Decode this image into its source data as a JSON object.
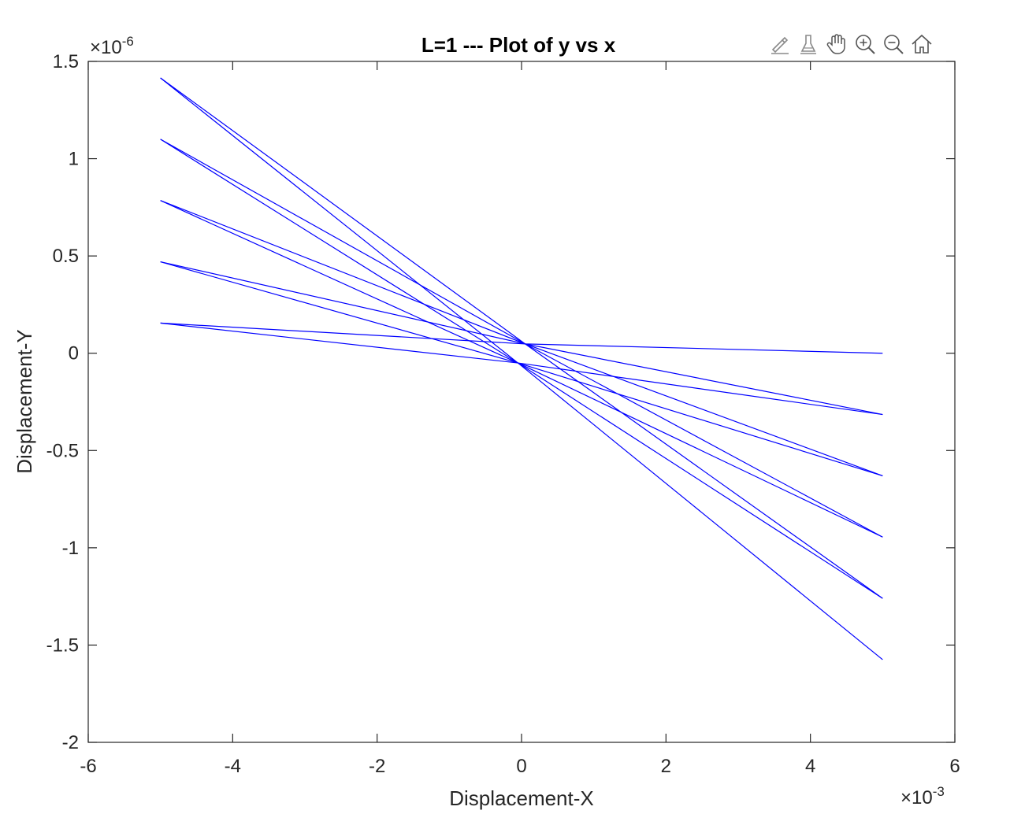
{
  "chart_data": {
    "type": "line",
    "title": "L=1 --- Plot of y vs x",
    "xlabel": "Displacement-X",
    "ylabel": "Displacement-Y",
    "x_multiplier": "×10",
    "x_exponent": "-3",
    "y_multiplier": "×10",
    "y_exponent": "-6",
    "xlim": [
      -6,
      6
    ],
    "ylim": [
      -2,
      1.5
    ],
    "xticks": [
      -6,
      -4,
      -2,
      0,
      2,
      4,
      6
    ],
    "yticks": [
      -2,
      -1.5,
      -1,
      -0.5,
      0,
      0.5,
      1,
      1.5
    ],
    "xtick_labels": [
      "-6",
      "-4",
      "-2",
      "0",
      "2",
      "4",
      "6"
    ],
    "ytick_labels": [
      "-2",
      "-1.5",
      "-1",
      "-0.5",
      "0",
      "0.5",
      "1",
      "1.5"
    ],
    "grid": false,
    "line_color": "#0000ff",
    "series": [
      {
        "x": [
          -5,
          0.05,
          5
        ],
        "y": [
          0.155,
          0.048,
          0.0
        ]
      },
      {
        "x": [
          -5,
          -0.05,
          5
        ],
        "y": [
          0.155,
          -0.05,
          -0.315
        ]
      },
      {
        "x": [
          -5,
          0.05,
          5
        ],
        "y": [
          0.47,
          0.048,
          -0.315
        ]
      },
      {
        "x": [
          -5,
          -0.05,
          5
        ],
        "y": [
          0.47,
          -0.05,
          -0.63
        ]
      },
      {
        "x": [
          -5,
          0.05,
          5
        ],
        "y": [
          0.785,
          0.048,
          -0.63
        ]
      },
      {
        "x": [
          -5,
          -0.05,
          5
        ],
        "y": [
          0.785,
          -0.05,
          -0.945
        ]
      },
      {
        "x": [
          -5,
          0.05,
          5
        ],
        "y": [
          1.1,
          0.048,
          -0.945
        ]
      },
      {
        "x": [
          -5,
          -0.05,
          5
        ],
        "y": [
          1.1,
          -0.05,
          -1.26
        ]
      },
      {
        "x": [
          -5,
          0.05,
          5
        ],
        "y": [
          1.415,
          0.048,
          -1.26
        ]
      },
      {
        "x": [
          -5,
          -0.05,
          5
        ],
        "y": [
          1.415,
          -0.05,
          -1.575
        ]
      }
    ]
  },
  "toolbar": {
    "icons": [
      "edit-brush-icon",
      "data-tips-icon",
      "pan-hand-icon",
      "zoom-in-icon",
      "zoom-out-icon",
      "home-icon"
    ]
  }
}
